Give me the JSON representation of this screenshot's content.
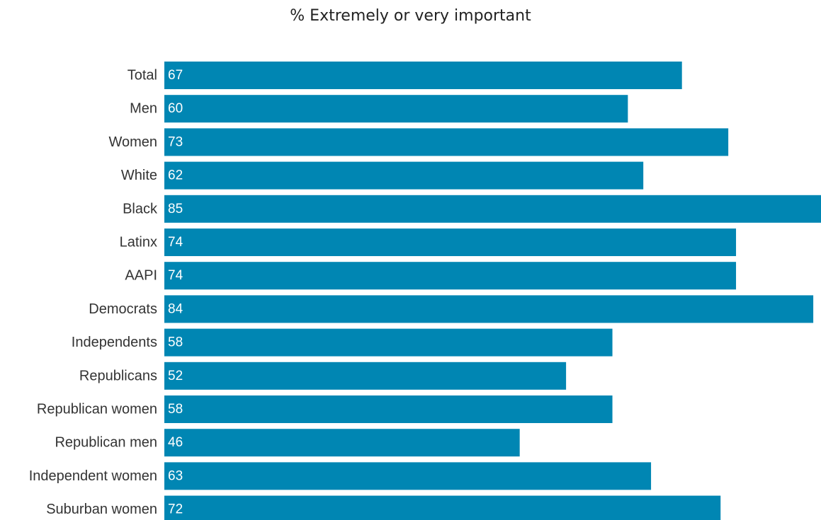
{
  "chart_data": {
    "type": "bar",
    "orientation": "horizontal",
    "title": "% Extremely or very important",
    "categories": [
      "Total",
      "Men",
      "Women",
      "White",
      "Black",
      "Latinx",
      "AAPI",
      "Democrats",
      "Independents",
      "Republicans",
      "Republican women",
      "Republican men",
      "Independent women",
      "Suburban women"
    ],
    "values": [
      67,
      60,
      73,
      62,
      85,
      74,
      74,
      84,
      58,
      52,
      58,
      46,
      63,
      72
    ],
    "xlim": [
      0,
      85
    ],
    "grid": false,
    "legend": "none",
    "bar_color": "#0086b3",
    "data_labels": "inside-start"
  }
}
